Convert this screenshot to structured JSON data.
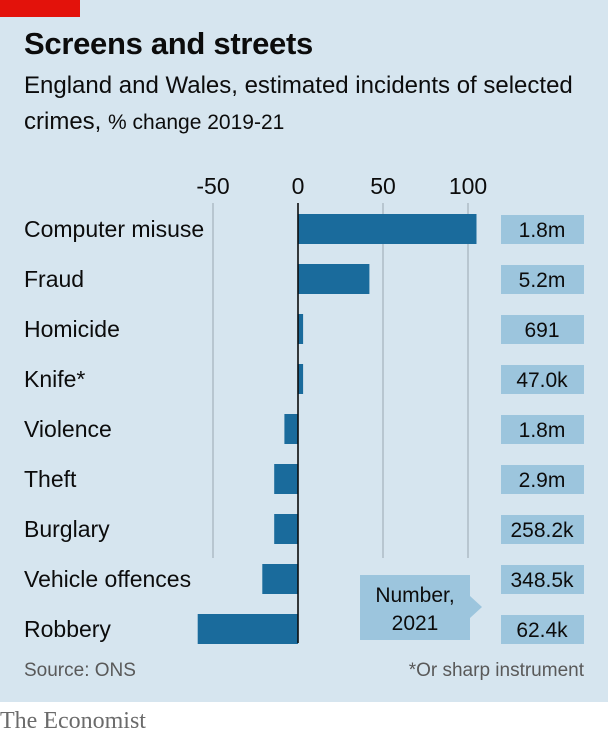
{
  "header": {
    "title": "Screens and streets",
    "subtitle_main": "England and Wales, estimated incidents of selected crimes,",
    "subtitle_unit": "% change 2019-21"
  },
  "chart_data": {
    "type": "bar",
    "orientation": "horizontal",
    "categories": [
      "Computer misuse",
      "Fraud",
      "Homicide",
      "Knife*",
      "Violence",
      "Theft",
      "Burglary",
      "Vehicle offences",
      "Robbery"
    ],
    "values": [
      105,
      42,
      3,
      3,
      -8,
      -14,
      -14,
      -21,
      -59
    ],
    "xlim": [
      -55,
      105
    ],
    "xticks": [
      -50,
      0,
      50,
      100
    ],
    "grid": true,
    "bar_color": "#1a6b9c",
    "value_box_color": "#9cc5dd",
    "number_2021": {
      "label": "Number, 2021",
      "labels": [
        "1.8m",
        "5.2m",
        "691",
        "47.0k",
        "1.8m",
        "2.9m",
        "258.2k",
        "348.5k",
        "62.4k"
      ]
    }
  },
  "footer": {
    "source": "Source: ONS",
    "note": "*Or sharp instrument"
  },
  "brand": "The Economist"
}
